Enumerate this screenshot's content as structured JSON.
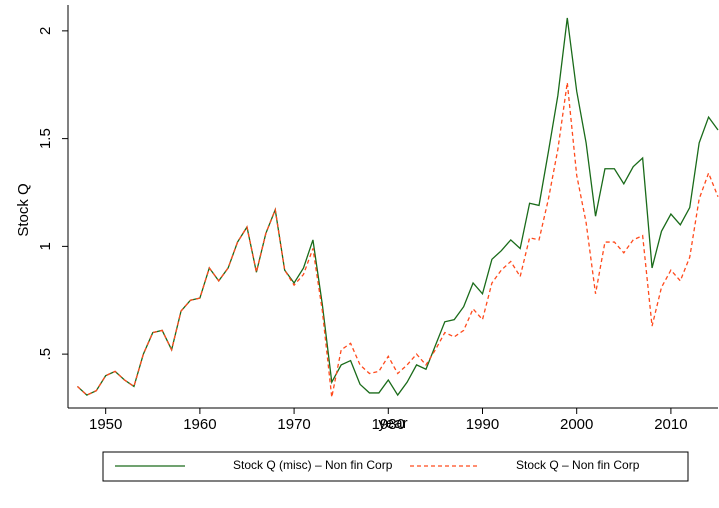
{
  "chart_data": {
    "type": "line",
    "x_label": "year",
    "y_label": "Stock Q",
    "x": [
      1947,
      1948,
      1949,
      1950,
      1951,
      1952,
      1953,
      1954,
      1955,
      1956,
      1957,
      1958,
      1959,
      1960,
      1961,
      1962,
      1963,
      1964,
      1965,
      1966,
      1967,
      1968,
      1969,
      1970,
      1971,
      1972,
      1973,
      1974,
      1975,
      1976,
      1977,
      1978,
      1979,
      1980,
      1981,
      1982,
      1983,
      1984,
      1985,
      1986,
      1987,
      1988,
      1989,
      1990,
      1991,
      1992,
      1993,
      1994,
      1995,
      1996,
      1997,
      1998,
      1999,
      2000,
      2001,
      2002,
      2003,
      2004,
      2005,
      2006,
      2007,
      2008,
      2009,
      2010,
      2011,
      2012,
      2013,
      2014,
      2015
    ],
    "series": [
      {
        "name": "Stock Q (misc) – Non fin Corp",
        "color": "#1a6b1a",
        "dash": "solid",
        "values": [
          0.35,
          0.31,
          0.33,
          0.4,
          0.42,
          0.38,
          0.35,
          0.5,
          0.6,
          0.61,
          0.52,
          0.7,
          0.75,
          0.76,
          0.9,
          0.84,
          0.9,
          1.02,
          1.09,
          0.88,
          1.06,
          1.17,
          0.89,
          0.83,
          0.9,
          1.03,
          0.73,
          0.37,
          0.45,
          0.47,
          0.36,
          0.32,
          0.32,
          0.38,
          0.31,
          0.37,
          0.45,
          0.43,
          0.54,
          0.65,
          0.66,
          0.72,
          0.83,
          0.78,
          0.94,
          0.98,
          1.03,
          0.99,
          1.2,
          1.19,
          1.44,
          1.7,
          2.06,
          1.72,
          1.48,
          1.14,
          1.36,
          1.36,
          1.29,
          1.37,
          1.41,
          0.9,
          1.07,
          1.15,
          1.1,
          1.18,
          1.48,
          1.6,
          1.54
        ]
      },
      {
        "name": "Stock Q – Non fin Corp",
        "color": "#ff4a1c",
        "dash": "dashed",
        "values": [
          0.35,
          0.31,
          0.33,
          0.4,
          0.42,
          0.38,
          0.35,
          0.5,
          0.6,
          0.61,
          0.52,
          0.7,
          0.75,
          0.76,
          0.9,
          0.84,
          0.9,
          1.02,
          1.09,
          0.88,
          1.06,
          1.17,
          0.89,
          0.82,
          0.87,
          0.99,
          0.7,
          0.3,
          0.52,
          0.55,
          0.45,
          0.41,
          0.42,
          0.49,
          0.41,
          0.45,
          0.5,
          0.45,
          0.52,
          0.6,
          0.58,
          0.61,
          0.71,
          0.66,
          0.83,
          0.89,
          0.93,
          0.86,
          1.04,
          1.03,
          1.22,
          1.45,
          1.76,
          1.33,
          1.11,
          0.78,
          1.02,
          1.02,
          0.97,
          1.03,
          1.05,
          0.63,
          0.81,
          0.89,
          0.84,
          0.95,
          1.22,
          1.34,
          1.23
        ]
      }
    ],
    "xlim": [
      1946,
      2015
    ],
    "xticks": [
      1950,
      1960,
      1970,
      1980,
      1990,
      2000,
      2010
    ],
    "ylim": [
      0.25,
      2.12
    ],
    "yticks": [
      {
        "value": 0.5,
        "label": ".5"
      },
      1,
      1.5,
      2
    ],
    "grid": false,
    "legend": "bottom"
  }
}
